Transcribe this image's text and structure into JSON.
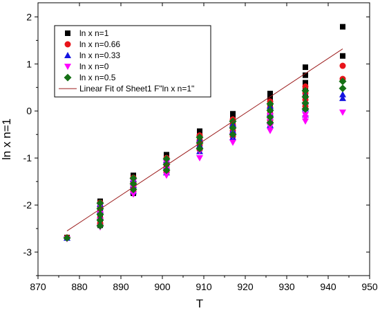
{
  "chart_data": {
    "type": "scatter",
    "title": "",
    "xlabel": "T",
    "ylabel": "ln x n=1",
    "xlim": [
      870,
      950
    ],
    "ylim": [
      -3.5,
      2.3
    ],
    "xticks": [
      870,
      880,
      890,
      900,
      910,
      920,
      930,
      940,
      950
    ],
    "yticks": [
      -3,
      -2,
      -1,
      0,
      1,
      2
    ],
    "grid": false,
    "legend_position": "top-left",
    "series": [
      {
        "name": "ln x n=1",
        "marker": "square",
        "color": "#000000",
        "points": [
          [
            877,
            -2.69
          ],
          [
            885,
            -1.92
          ],
          [
            885,
            -2.0
          ],
          [
            885,
            -2.1
          ],
          [
            885,
            -2.2
          ],
          [
            885,
            -2.3
          ],
          [
            885,
            -2.43
          ],
          [
            893,
            -1.37
          ],
          [
            893,
            -1.45
          ],
          [
            893,
            -1.52
          ],
          [
            893,
            -1.6
          ],
          [
            893,
            -1.68
          ],
          [
            893,
            -1.75
          ],
          [
            901,
            -0.93
          ],
          [
            901,
            -1.0
          ],
          [
            901,
            -1.07
          ],
          [
            901,
            -1.13
          ],
          [
            901,
            -1.2
          ],
          [
            901,
            -1.27
          ],
          [
            909,
            -0.43
          ],
          [
            909,
            -0.5
          ],
          [
            909,
            -0.57
          ],
          [
            909,
            -0.64
          ],
          [
            909,
            -0.7
          ],
          [
            909,
            -0.77
          ],
          [
            917,
            -0.06
          ],
          [
            917,
            -0.14
          ],
          [
            917,
            -0.22
          ],
          [
            917,
            -0.3
          ],
          [
            917,
            -0.38
          ],
          [
            926,
            0.37
          ],
          [
            926,
            0.28
          ],
          [
            926,
            0.19
          ],
          [
            926,
            0.1
          ],
          [
            926,
            0.01
          ],
          [
            926,
            -0.08
          ],
          [
            934.5,
            0.93
          ],
          [
            934.5,
            0.76
          ],
          [
            934.5,
            0.6
          ],
          [
            934.5,
            0.45
          ],
          [
            934.5,
            0.3
          ],
          [
            943.5,
            1.79
          ],
          [
            943.5,
            1.17
          ]
        ]
      },
      {
        "name": "ln x n=0.66",
        "marker": "circle",
        "color": "#e8141a",
        "points": [
          [
            877,
            -2.69
          ],
          [
            885,
            -1.95
          ],
          [
            885,
            -2.06
          ],
          [
            885,
            -2.17
          ],
          [
            885,
            -2.28
          ],
          [
            885,
            -2.39
          ],
          [
            893,
            -1.42
          ],
          [
            893,
            -1.52
          ],
          [
            893,
            -1.62
          ],
          [
            893,
            -1.72
          ],
          [
            901,
            -1.0
          ],
          [
            901,
            -1.1
          ],
          [
            901,
            -1.2
          ],
          [
            901,
            -1.3
          ],
          [
            909,
            -0.52
          ],
          [
            909,
            -0.62
          ],
          [
            909,
            -0.72
          ],
          [
            909,
            -0.82
          ],
          [
            917,
            -0.18
          ],
          [
            917,
            -0.3
          ],
          [
            917,
            -0.42
          ],
          [
            917,
            -0.54
          ],
          [
            926,
            0.2
          ],
          [
            926,
            0.07
          ],
          [
            926,
            -0.06
          ],
          [
            926,
            -0.2
          ],
          [
            934.5,
            0.52
          ],
          [
            934.5,
            0.38
          ],
          [
            934.5,
            0.24
          ],
          [
            934.5,
            0.1
          ],
          [
            943.5,
            0.96
          ],
          [
            943.5,
            0.68
          ]
        ]
      },
      {
        "name": "ln x n=0.33",
        "marker": "triangle-up",
        "color": "#1414e0",
        "points": [
          [
            877,
            -2.7
          ],
          [
            885,
            -1.98
          ],
          [
            885,
            -2.12
          ],
          [
            885,
            -2.26
          ],
          [
            885,
            -2.4
          ],
          [
            893,
            -1.45
          ],
          [
            893,
            -1.58
          ],
          [
            893,
            -1.71
          ],
          [
            901,
            -1.05
          ],
          [
            901,
            -1.18
          ],
          [
            901,
            -1.31
          ],
          [
            909,
            -0.6
          ],
          [
            909,
            -0.73
          ],
          [
            909,
            -0.86
          ],
          [
            917,
            -0.28
          ],
          [
            917,
            -0.42
          ],
          [
            917,
            -0.56
          ],
          [
            926,
            0.1
          ],
          [
            926,
            -0.05
          ],
          [
            926,
            -0.2
          ],
          [
            926,
            -0.3
          ],
          [
            934.5,
            0.35
          ],
          [
            934.5,
            0.2
          ],
          [
            934.5,
            0.05
          ],
          [
            934.5,
            -0.08
          ],
          [
            943.5,
            0.35
          ],
          [
            943.5,
            0.27
          ]
        ]
      },
      {
        "name": "ln x n=0",
        "marker": "triangle-down",
        "color": "#ff00ff",
        "points": [
          [
            877,
            -2.72
          ],
          [
            885,
            -2.02
          ],
          [
            885,
            -2.18
          ],
          [
            885,
            -2.33
          ],
          [
            885,
            -2.47
          ],
          [
            893,
            -1.5
          ],
          [
            893,
            -1.63
          ],
          [
            893,
            -1.77
          ],
          [
            901,
            -1.1
          ],
          [
            901,
            -1.24
          ],
          [
            901,
            -1.37
          ],
          [
            909,
            -0.7
          ],
          [
            909,
            -0.85
          ],
          [
            909,
            -1.0
          ],
          [
            917,
            -0.4
          ],
          [
            917,
            -0.53
          ],
          [
            917,
            -0.67
          ],
          [
            926,
            -0.1
          ],
          [
            926,
            -0.22
          ],
          [
            926,
            -0.33
          ],
          [
            926,
            -0.42
          ],
          [
            934.5,
            0.0
          ],
          [
            934.5,
            -0.08
          ],
          [
            934.5,
            -0.15
          ],
          [
            934.5,
            -0.22
          ],
          [
            943.5,
            -0.03
          ]
        ]
      },
      {
        "name": "ln x n=0.5",
        "marker": "diamond",
        "color": "#157015",
        "points": [
          [
            877,
            -2.7
          ],
          [
            885,
            -1.96
          ],
          [
            885,
            -2.08
          ],
          [
            885,
            -2.2
          ],
          [
            885,
            -2.32
          ],
          [
            885,
            -2.44
          ],
          [
            893,
            -1.43
          ],
          [
            893,
            -1.55
          ],
          [
            893,
            -1.67
          ],
          [
            901,
            -1.02
          ],
          [
            901,
            -1.14
          ],
          [
            901,
            -1.26
          ],
          [
            909,
            -0.56
          ],
          [
            909,
            -0.68
          ],
          [
            909,
            -0.8
          ],
          [
            917,
            -0.22
          ],
          [
            917,
            -0.36
          ],
          [
            917,
            -0.5
          ],
          [
            926,
            0.15
          ],
          [
            926,
            0.01
          ],
          [
            926,
            -0.13
          ],
          [
            926,
            -0.25
          ],
          [
            934.5,
            0.43
          ],
          [
            934.5,
            0.3
          ],
          [
            934.5,
            0.17
          ],
          [
            934.5,
            0.04
          ],
          [
            943.5,
            0.63
          ],
          [
            943.5,
            0.48
          ]
        ]
      },
      {
        "name": "Linear Fit of Sheet1 F\"ln x n=1\"",
        "type": "line",
        "color": "#9b1b1b",
        "points": [
          [
            877,
            -2.55
          ],
          [
            943.5,
            1.32
          ]
        ]
      }
    ]
  }
}
